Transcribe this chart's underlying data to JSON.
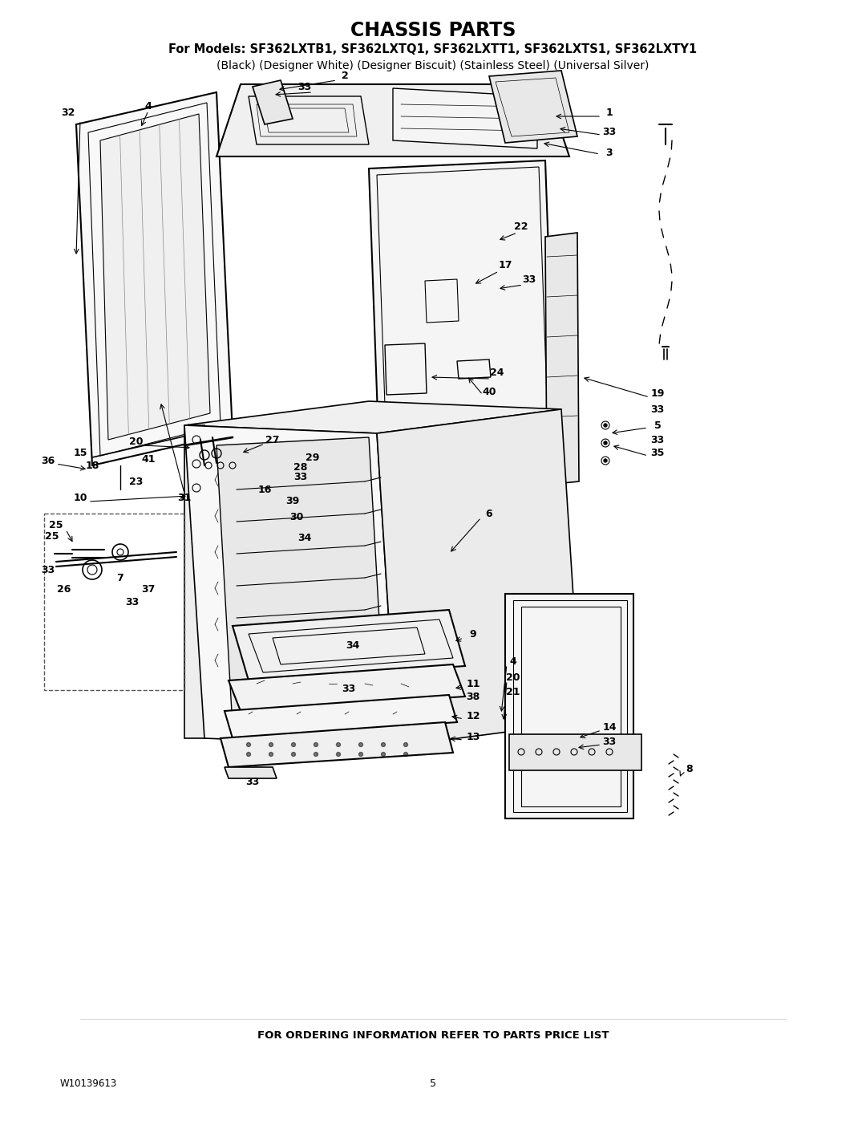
{
  "title": "CHASSIS PARTS",
  "subtitle1": "For Models: SF362LXTB1, SF362LXTQ1, SF362LXTT1, SF362LXTS1, SF362LXTY1",
  "subtitle2": "(Black) (Designer White) (Designer Biscuit) (Stainless Steel) (Universal Silver)",
  "footer": "FOR ORDERING INFORMATION REFER TO PARTS PRICE LIST",
  "part_number": "W10139613",
  "page_number": "5",
  "bg_color": "#ffffff",
  "line_color": "#000000",
  "title_fontsize": 17,
  "subtitle_fontsize": 10.5,
  "footer_fontsize": 9.5,
  "label_fontsize": 9,
  "figsize": [
    10.8,
    13.97
  ],
  "dpi": 100
}
